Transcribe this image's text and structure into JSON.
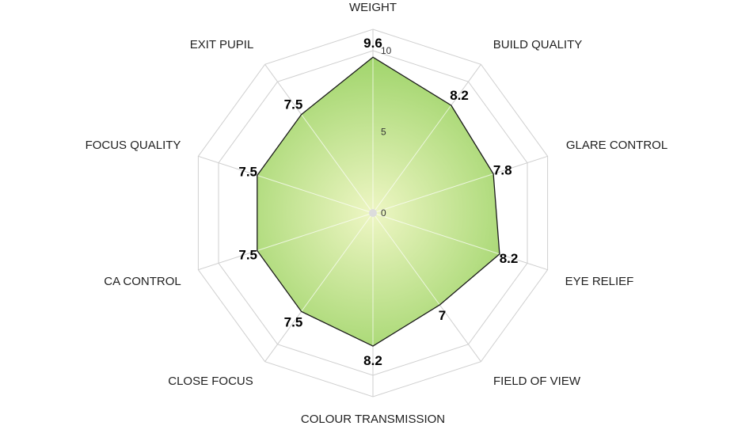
{
  "chart_data": {
    "type": "radar",
    "title": "",
    "categories": [
      "WEIGHT",
      "BUILD QUALITY",
      "GLARE CONTROL",
      "EYE RELIEF",
      "FIELD OF VIEW",
      "COLOUR TRANSMISSION",
      "CLOSE FOCUS",
      "CA CONTROL",
      "FOCUS QUALITY",
      "EXIT PUPIL"
    ],
    "values": [
      9.6,
      8.2,
      7.8,
      8.2,
      7,
      8.2,
      7.5,
      7.5,
      7.5,
      7.5
    ],
    "value_labels": [
      "9.6",
      "8.2",
      "7.8",
      "8.2",
      "7",
      "8.2",
      "7.5",
      "7.5",
      "7.5",
      "7.5"
    ],
    "range": [
      0,
      10
    ],
    "ticks": [
      "0",
      "5",
      "10"
    ],
    "colors": {
      "fill_center": "#eef6c4",
      "fill_edge": "#9fd46a",
      "outline": "#1a1a1a",
      "grid": "#cfcfcf"
    }
  }
}
